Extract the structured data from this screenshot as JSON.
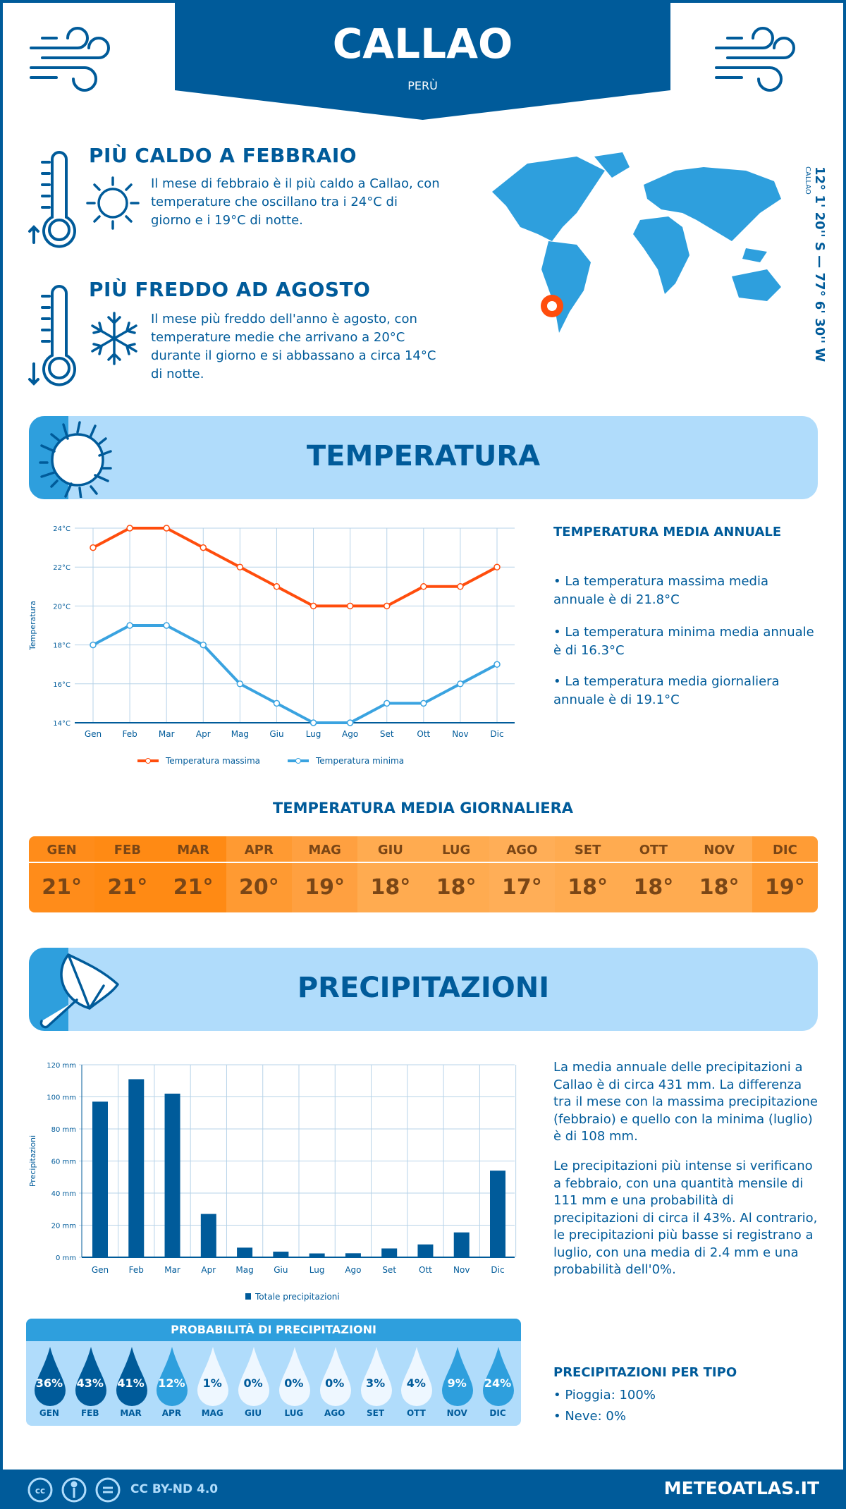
{
  "header": {
    "city": "CALLAO",
    "country": "PERÙ"
  },
  "hot": {
    "title": "PIÙ CALDO A FEBBRAIO",
    "text": "Il mese di febbraio è il più caldo a Callao, con temperature che oscillano tra i 24°C di giorno e i 19°C di notte."
  },
  "cold": {
    "title": "PIÙ FREDDO AD AGOSTO",
    "text": "Il mese più freddo dell'anno è agosto, con temperature medie che arrivano a 20°C durante il giorno e si abbassano a circa 14°C di notte."
  },
  "map": {
    "city_label": "CALLAO",
    "coords": "12° 1' 20'' S — 77° 6' 30'' W",
    "marker_color": "#ff4d0d"
  },
  "temp_section": {
    "title": "TEMPERATURA"
  },
  "temp_annual": {
    "title": "TEMPERATURA MEDIA ANNUALE",
    "bullets": [
      "• La temperatura massima media annuale è di 21.8°C",
      "• La temperatura minima media annuale è di 16.3°C",
      "• La temperatura media giornaliera annuale è di 19.1°C"
    ]
  },
  "daily": {
    "title": "TEMPERATURA MEDIA GIORNALIERA",
    "months": [
      "GEN",
      "FEB",
      "MAR",
      "APR",
      "MAG",
      "GIU",
      "LUG",
      "AGO",
      "SET",
      "OTT",
      "NOV",
      "DIC"
    ],
    "values": [
      "21°",
      "21°",
      "21°",
      "20°",
      "19°",
      "18°",
      "18°",
      "17°",
      "18°",
      "18°",
      "18°",
      "19°"
    ],
    "colors": [
      "#ff8c1a",
      "#ff8a14",
      "#ff8a14",
      "#ff9a32",
      "#ffa040",
      "#ffab50",
      "#ffab50",
      "#ffae57",
      "#ffab50",
      "#ffab50",
      "#ffab50",
      "#ff9c35"
    ]
  },
  "precip_section": {
    "title": "PRECIPITAZIONI"
  },
  "precip_text": {
    "p1": "La media annuale delle precipitazioni a Callao è di circa 431 mm. La differenza tra il mese con la massima precipitazione (febbraio) e quello con la minima (luglio) è di 108 mm.",
    "p2": "Le precipitazioni più intense si verificano a febbraio, con una quantità mensile di 111 mm e una probabilità di precipitazioni di circa il 43%. Al contrario, le precipitazioni più basse si registrano a luglio, con una media di 2.4 mm e una probabilità dell'0%."
  },
  "probability": {
    "title": "PROBABILITÀ DI PRECIPITAZIONI",
    "months": [
      "GEN",
      "FEB",
      "MAR",
      "APR",
      "MAG",
      "GIU",
      "LUG",
      "AGO",
      "SET",
      "OTT",
      "NOV",
      "DIC"
    ],
    "values": [
      36,
      43,
      41,
      12,
      1,
      0,
      0,
      0,
      3,
      4,
      9,
      24
    ]
  },
  "precip_type": {
    "title": "PRECIPITAZIONI PER TIPO",
    "rain": "• Pioggia: 100%",
    "snow": "• Neve: 0%"
  },
  "footer": {
    "license": "CC BY-ND 4.0",
    "site": "METEOATLAS.IT"
  },
  "chart_data": [
    {
      "type": "line",
      "title": "",
      "ylabel": "Temperatura",
      "ylim": [
        14,
        24
      ],
      "yticks": [
        "14°C",
        "16°C",
        "18°C",
        "20°C",
        "22°C",
        "24°C"
      ],
      "categories": [
        "Gen",
        "Feb",
        "Mar",
        "Apr",
        "Mag",
        "Giu",
        "Lug",
        "Ago",
        "Set",
        "Ott",
        "Nov",
        "Dic"
      ],
      "series": [
        {
          "name": "Temperatura massima",
          "color": "#ff4d0d",
          "values": [
            23,
            24,
            24,
            23,
            22,
            21,
            20,
            20,
            20,
            21,
            21,
            22
          ]
        },
        {
          "name": "Temperatura minima",
          "color": "#3aa3e0",
          "values": [
            18,
            19,
            19,
            18,
            16,
            15,
            14,
            14,
            15,
            15,
            16,
            17
          ]
        }
      ],
      "legend": "bottom",
      "grid": true
    },
    {
      "type": "bar",
      "title": "",
      "ylabel": "Precipitazioni",
      "ylim": [
        0,
        120
      ],
      "yticks": [
        "0 mm",
        "20 mm",
        "40 mm",
        "60 mm",
        "80 mm",
        "100 mm",
        "120 mm"
      ],
      "categories": [
        "Gen",
        "Feb",
        "Mar",
        "Apr",
        "Mag",
        "Giu",
        "Lug",
        "Ago",
        "Set",
        "Ott",
        "Nov",
        "Dic"
      ],
      "series": [
        {
          "name": "Totale precipitazioni",
          "color": "#005b9a",
          "values": [
            97,
            111,
            102,
            27,
            6,
            3.5,
            2.4,
            2.5,
            5.5,
            8,
            15.5,
            54
          ]
        }
      ],
      "legend": "bottom",
      "grid": true
    }
  ]
}
